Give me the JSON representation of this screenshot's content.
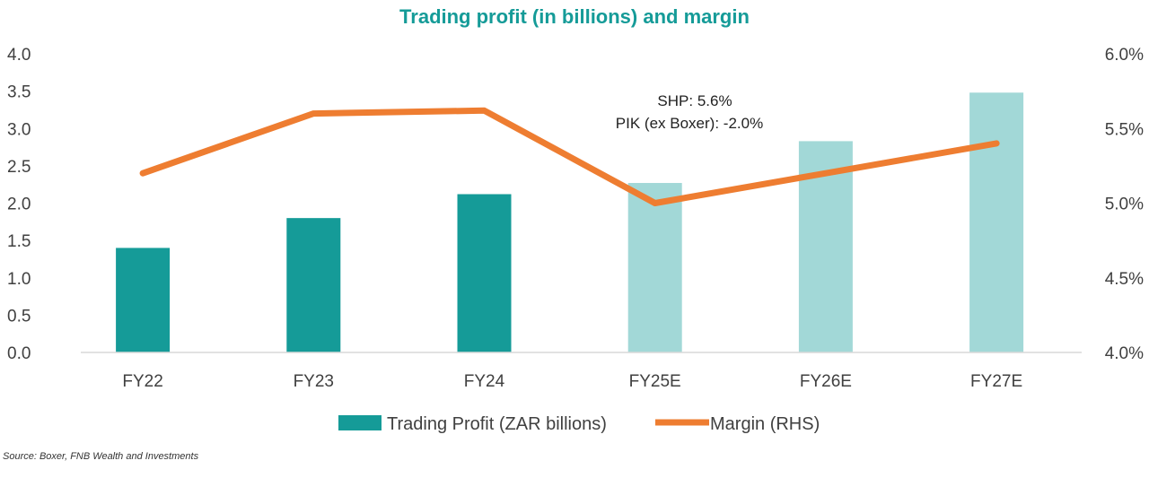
{
  "chart_data": {
    "type": "bar",
    "title": "Trading profit (in billions) and margin",
    "categories": [
      "FY22",
      "FY23",
      "FY24",
      "FY25E",
      "FY26E",
      "FY27E"
    ],
    "series": [
      {
        "name": "Trading Profit (ZAR billions)",
        "type": "bar",
        "axis": "left",
        "values": [
          1.4,
          1.8,
          2.12,
          2.27,
          2.83,
          3.48
        ],
        "colors": [
          "#159B98",
          "#159B98",
          "#159B98",
          "#A2D8D7",
          "#A2D8D7",
          "#A2D8D7"
        ]
      },
      {
        "name": "Margin (RHS)",
        "type": "line",
        "axis": "right",
        "values": [
          5.2,
          5.6,
          5.62,
          5.0,
          5.2,
          5.4
        ],
        "color": "#EE7D31"
      }
    ],
    "y_left": {
      "min": 0,
      "max": 4.0,
      "step": 0.5,
      "tick_labels": [
        "0.0",
        "0.5",
        "1.0",
        "1.5",
        "2.0",
        "2.5",
        "3.0",
        "3.5",
        "4.0"
      ]
    },
    "y_right": {
      "min": 4.0,
      "max": 6.0,
      "step": 0.5,
      "tick_labels": [
        "4.0%",
        "4.5%",
        "5.0%",
        "5.5%",
        "6.0%"
      ]
    },
    "annotations": [
      "SHP: 5.6%",
      "PIK (ex Boxer): -2.0%"
    ],
    "legend_position": "bottom",
    "grid": false
  },
  "title_color": "#159B98",
  "source": "Source: Boxer, FNB Wealth and Investments"
}
